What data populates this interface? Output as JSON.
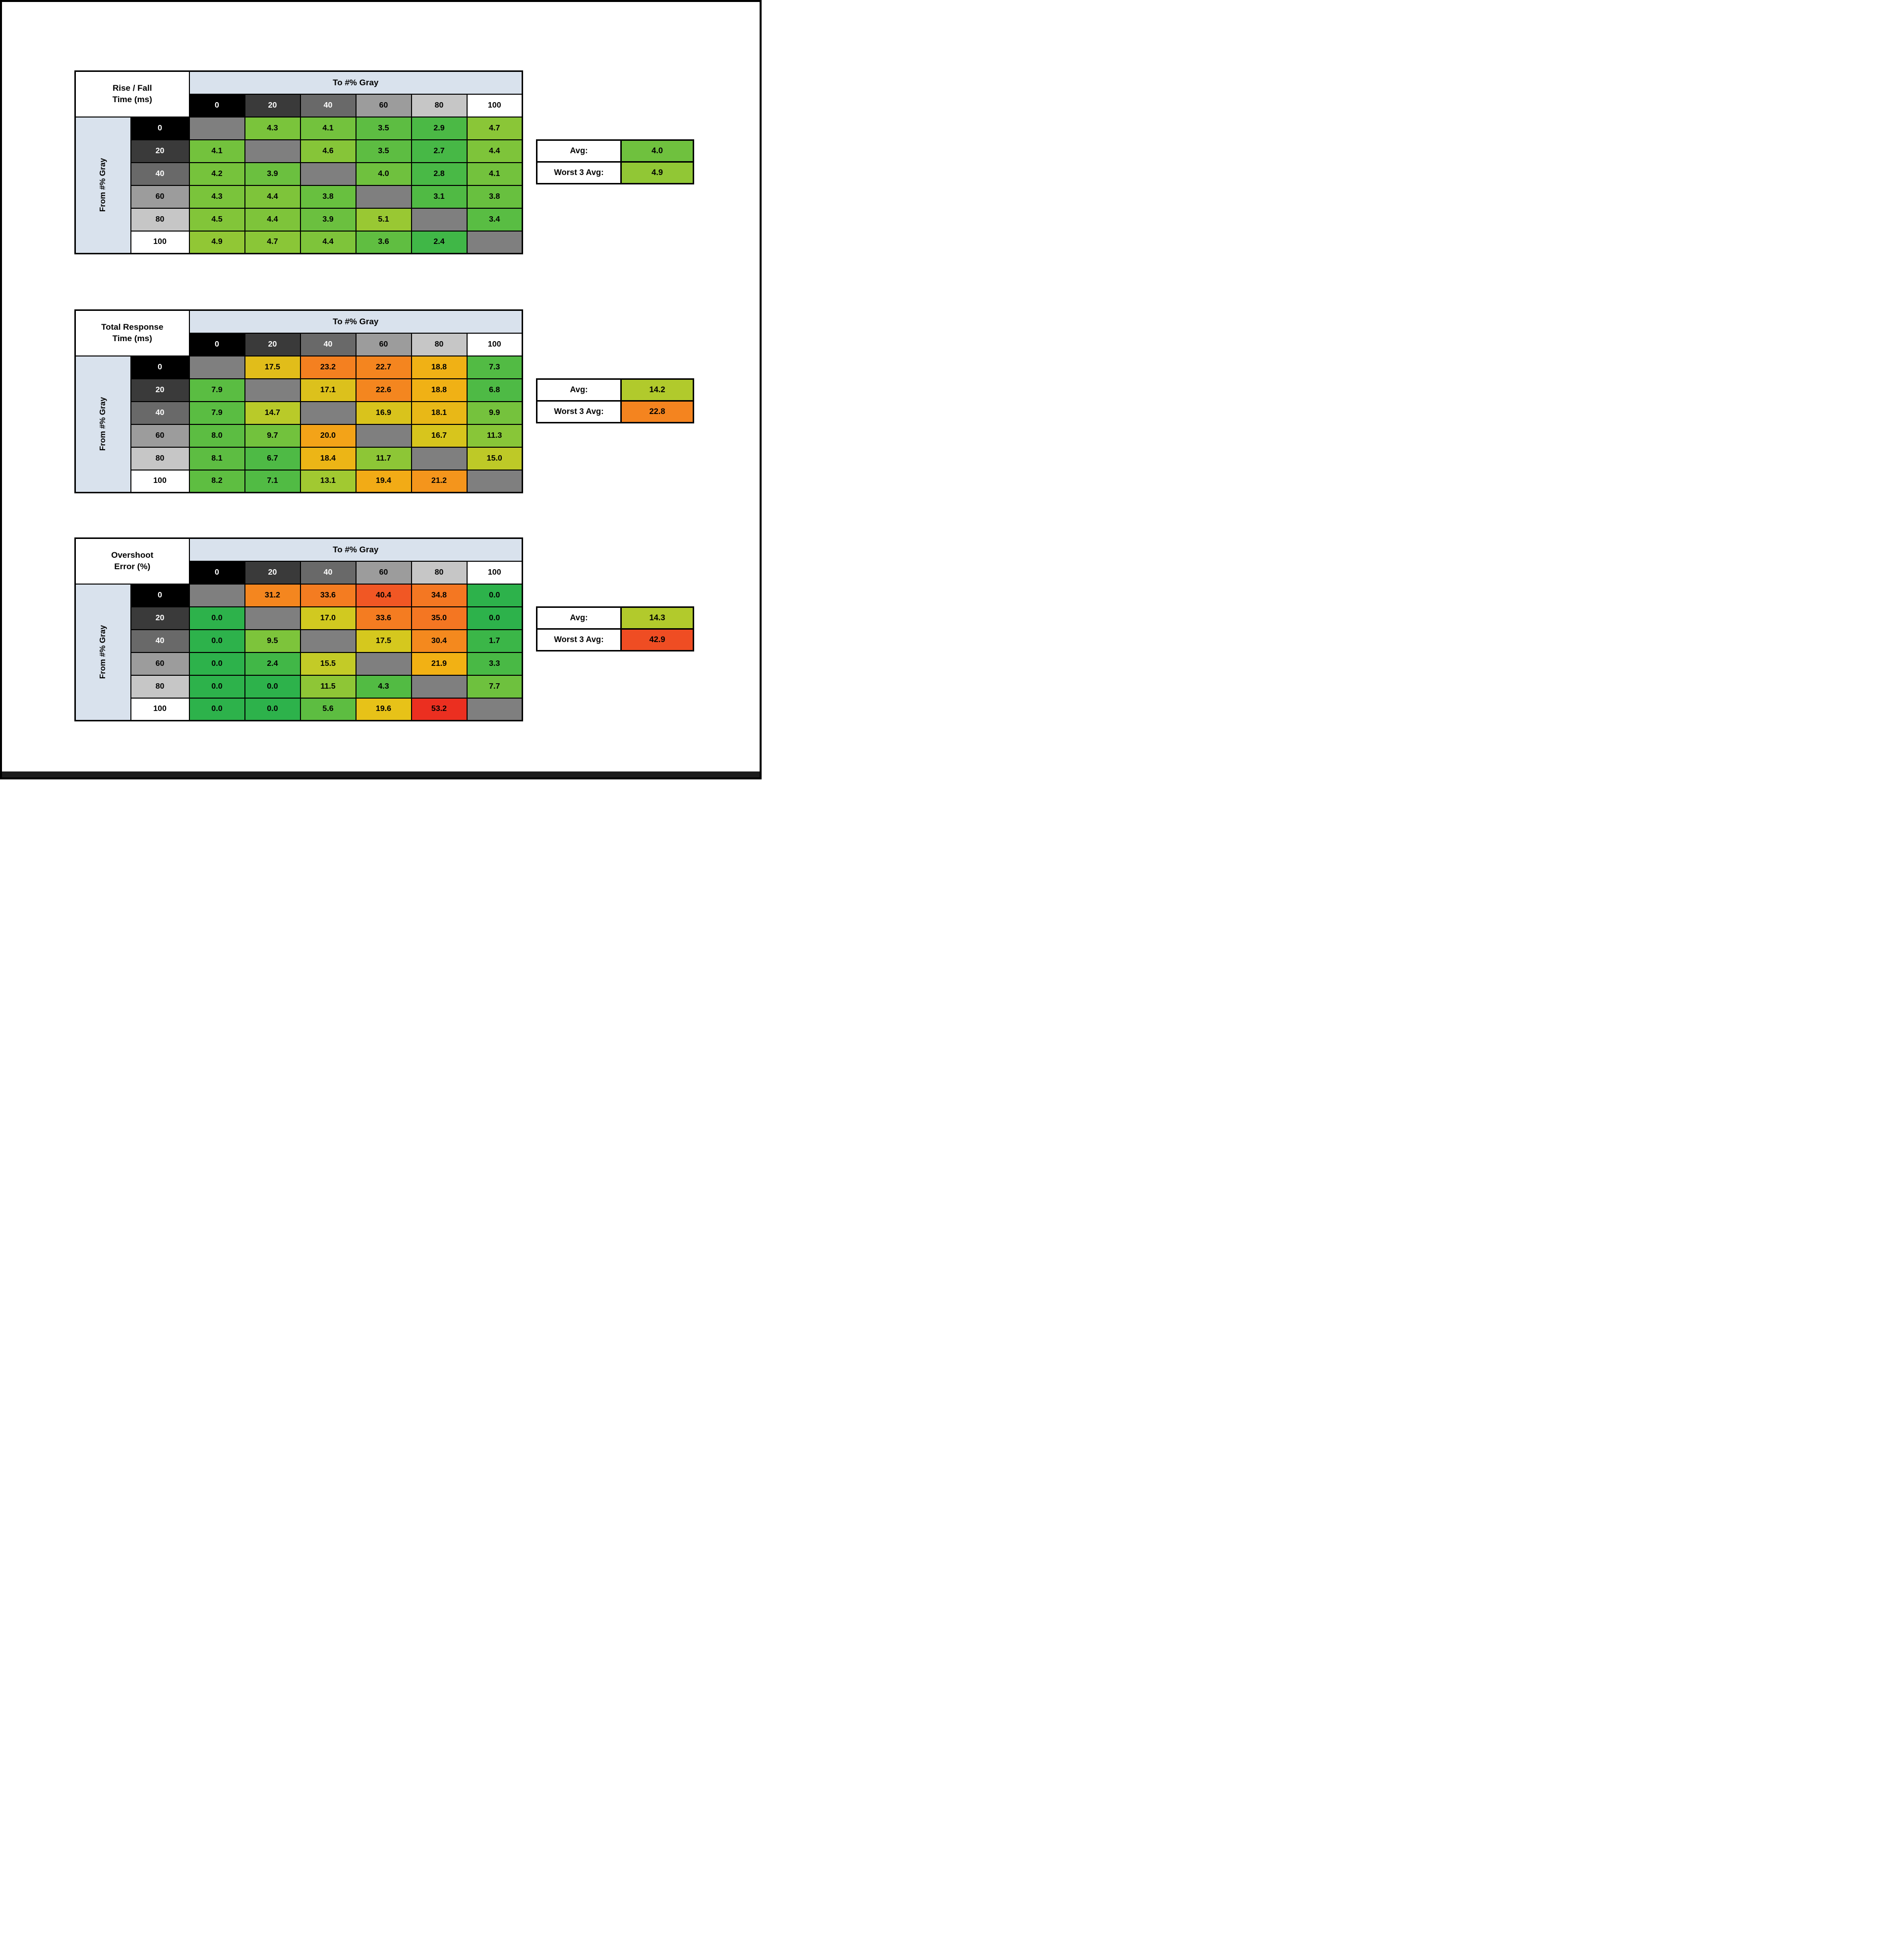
{
  "page": {
    "background": "#ffffff",
    "frame_color": "#000000",
    "bottom_bar_color": "#1c1c1c"
  },
  "colors": {
    "header_fill": "#d9e2ed",
    "diagonal_fill": "#7f7f7f",
    "grid_border": "#000000",
    "gray_scale_bg": [
      "#000000",
      "#3a3a3a",
      "#696969",
      "#9c9c9c",
      "#c6c6c6",
      "#ffffff"
    ],
    "gray_scale_text": [
      "#ffffff",
      "#ffffff",
      "#ffffff",
      "#000000",
      "#000000",
      "#000000"
    ]
  },
  "levels": [
    "0",
    "20",
    "40",
    "60",
    "80",
    "100"
  ],
  "tables": [
    {
      "id": "rise-fall-time",
      "title_line1": "Rise / Fall",
      "title_line2": "Time (ms)",
      "to_label": "To #% Gray",
      "from_label": "From #% Gray",
      "avg_label": "Avg:",
      "avg_value": "4.0",
      "worst_label": "Worst 3 Avg:",
      "worst_value": "4.9",
      "values": [
        [
          null,
          "4.3",
          "4.1",
          "3.5",
          "2.9",
          "4.7"
        ],
        [
          "4.1",
          null,
          "4.6",
          "3.5",
          "2.7",
          "4.4"
        ],
        [
          "4.2",
          "3.9",
          null,
          "4.0",
          "2.8",
          "4.1"
        ],
        [
          "4.3",
          "4.4",
          "3.8",
          null,
          "3.1",
          "3.8"
        ],
        [
          "4.5",
          "4.4",
          "3.9",
          "5.1",
          null,
          "3.4"
        ],
        [
          "4.9",
          "4.7",
          "4.4",
          "3.6",
          "2.4",
          null
        ]
      ],
      "scale": {
        "domain": [
          1.5,
          11
        ],
        "anchors": [
          [
            0,
            "#2db24b"
          ],
          [
            0.18,
            "#52bb44"
          ],
          [
            0.3,
            "#7cc43b"
          ],
          [
            0.42,
            "#a8ca2f"
          ],
          [
            0.52,
            "#d2c91f"
          ],
          [
            0.62,
            "#f2b014"
          ],
          [
            0.72,
            "#f4911d"
          ],
          [
            0.8,
            "#f47b21"
          ],
          [
            0.9,
            "#f05024"
          ],
          [
            1,
            "#ea2a1f"
          ]
        ]
      }
    },
    {
      "id": "total-response-time",
      "title_line1": "Total Response",
      "title_line2": "Time (ms)",
      "to_label": "To #% Gray",
      "from_label": "From #% Gray",
      "avg_label": "Avg:",
      "avg_value": "14.2",
      "worst_label": "Worst 3 Avg:",
      "worst_value": "22.8",
      "values": [
        [
          null,
          "17.5",
          "23.2",
          "22.7",
          "18.8",
          "7.3"
        ],
        [
          "7.9",
          null,
          "17.1",
          "22.6",
          "18.8",
          "6.8"
        ],
        [
          "7.9",
          "14.7",
          null,
          "16.9",
          "18.1",
          "9.9"
        ],
        [
          "8.0",
          "9.7",
          "20.0",
          null,
          "16.7",
          "11.3"
        ],
        [
          "8.1",
          "6.7",
          "18.4",
          "11.7",
          null,
          "15.0"
        ],
        [
          "8.2",
          "7.1",
          "13.1",
          "19.4",
          "21.2",
          null
        ]
      ],
      "scale": {
        "domain": [
          2.5,
          29
        ],
        "anchors": [
          [
            0,
            "#2db24b"
          ],
          [
            0.18,
            "#52bb44"
          ],
          [
            0.3,
            "#7cc43b"
          ],
          [
            0.42,
            "#a8ca2f"
          ],
          [
            0.52,
            "#d2c91f"
          ],
          [
            0.62,
            "#f2b014"
          ],
          [
            0.72,
            "#f4911d"
          ],
          [
            0.8,
            "#f47b21"
          ],
          [
            0.9,
            "#f05024"
          ],
          [
            1,
            "#ea2a1f"
          ]
        ]
      }
    },
    {
      "id": "overshoot-error",
      "title_line1": "Overshoot",
      "title_line2": "Error (%)",
      "to_label": "To #% Gray",
      "from_label": "From #% Gray",
      "avg_label": "Avg:",
      "avg_value": "14.3",
      "worst_label": "Worst 3 Avg:",
      "worst_value": "42.9",
      "values": [
        [
          null,
          "31.2",
          "33.6",
          "40.4",
          "34.8",
          "0.0"
        ],
        [
          "0.0",
          null,
          "17.0",
          "33.6",
          "35.0",
          "0.0"
        ],
        [
          "0.0",
          "9.5",
          null,
          "17.5",
          "30.4",
          "1.7"
        ],
        [
          "0.0",
          "2.4",
          "15.5",
          null,
          "21.9",
          "3.3"
        ],
        [
          "0.0",
          "0.0",
          "11.5",
          "4.3",
          null,
          "7.7"
        ],
        [
          "0.0",
          "0.0",
          "5.6",
          "19.6",
          "53.2",
          null
        ]
      ],
      "scale": {
        "domain": [
          0,
          55
        ],
        "anchors": [
          [
            0,
            "#2db24b"
          ],
          [
            0.05,
            "#44b846"
          ],
          [
            0.1,
            "#5cbd41"
          ],
          [
            0.17,
            "#7cc43b"
          ],
          [
            0.22,
            "#93c735"
          ],
          [
            0.28,
            "#c2cb27"
          ],
          [
            0.32,
            "#d6c81e"
          ],
          [
            0.36,
            "#e9c117"
          ],
          [
            0.4,
            "#f2b014"
          ],
          [
            0.55,
            "#f48a1e"
          ],
          [
            0.64,
            "#f47522"
          ],
          [
            0.75,
            "#f05224"
          ],
          [
            1,
            "#ea2a1f"
          ]
        ]
      }
    }
  ],
  "chart_data": [
    {
      "type": "heatmap",
      "title": "Rise / Fall Time (ms)",
      "xlabel": "To #% Gray",
      "ylabel": "From #% Gray",
      "x_ticks": [
        "0",
        "20",
        "40",
        "60",
        "80",
        "100"
      ],
      "y_ticks": [
        "0",
        "20",
        "40",
        "60",
        "80",
        "100"
      ],
      "values": [
        [
          null,
          4.3,
          4.1,
          3.5,
          2.9,
          4.7
        ],
        [
          4.1,
          null,
          4.6,
          3.5,
          2.7,
          4.4
        ],
        [
          4.2,
          3.9,
          null,
          4.0,
          2.8,
          4.1
        ],
        [
          4.3,
          4.4,
          3.8,
          null,
          3.1,
          3.8
        ],
        [
          4.5,
          4.4,
          3.9,
          5.1,
          null,
          3.4
        ],
        [
          4.9,
          4.7,
          4.4,
          3.6,
          2.4,
          null
        ]
      ],
      "avg": 4.0,
      "worst_3_avg": 4.9
    },
    {
      "type": "heatmap",
      "title": "Total Response Time (ms)",
      "xlabel": "To #% Gray",
      "ylabel": "From #% Gray",
      "x_ticks": [
        "0",
        "20",
        "40",
        "60",
        "80",
        "100"
      ],
      "y_ticks": [
        "0",
        "20",
        "40",
        "60",
        "80",
        "100"
      ],
      "values": [
        [
          null,
          17.5,
          23.2,
          22.7,
          18.8,
          7.3
        ],
        [
          7.9,
          null,
          17.1,
          22.6,
          18.8,
          6.8
        ],
        [
          7.9,
          14.7,
          null,
          16.9,
          18.1,
          9.9
        ],
        [
          8.0,
          9.7,
          20.0,
          null,
          16.7,
          11.3
        ],
        [
          8.1,
          6.7,
          18.4,
          11.7,
          null,
          15.0
        ],
        [
          8.2,
          7.1,
          13.1,
          19.4,
          21.2,
          null
        ]
      ],
      "avg": 14.2,
      "worst_3_avg": 22.8
    },
    {
      "type": "heatmap",
      "title": "Overshoot Error (%)",
      "xlabel": "To #% Gray",
      "ylabel": "From #% Gray",
      "x_ticks": [
        "0",
        "20",
        "40",
        "60",
        "80",
        "100"
      ],
      "y_ticks": [
        "0",
        "20",
        "40",
        "60",
        "80",
        "100"
      ],
      "values": [
        [
          null,
          31.2,
          33.6,
          40.4,
          34.8,
          0.0
        ],
        [
          0.0,
          null,
          17.0,
          33.6,
          35.0,
          0.0
        ],
        [
          0.0,
          9.5,
          null,
          17.5,
          30.4,
          1.7
        ],
        [
          0.0,
          2.4,
          15.5,
          null,
          21.9,
          3.3
        ],
        [
          0.0,
          0.0,
          11.5,
          4.3,
          null,
          7.7
        ],
        [
          0.0,
          0.0,
          5.6,
          19.6,
          53.2,
          null
        ]
      ],
      "avg": 14.3,
      "worst_3_avg": 42.9
    }
  ]
}
